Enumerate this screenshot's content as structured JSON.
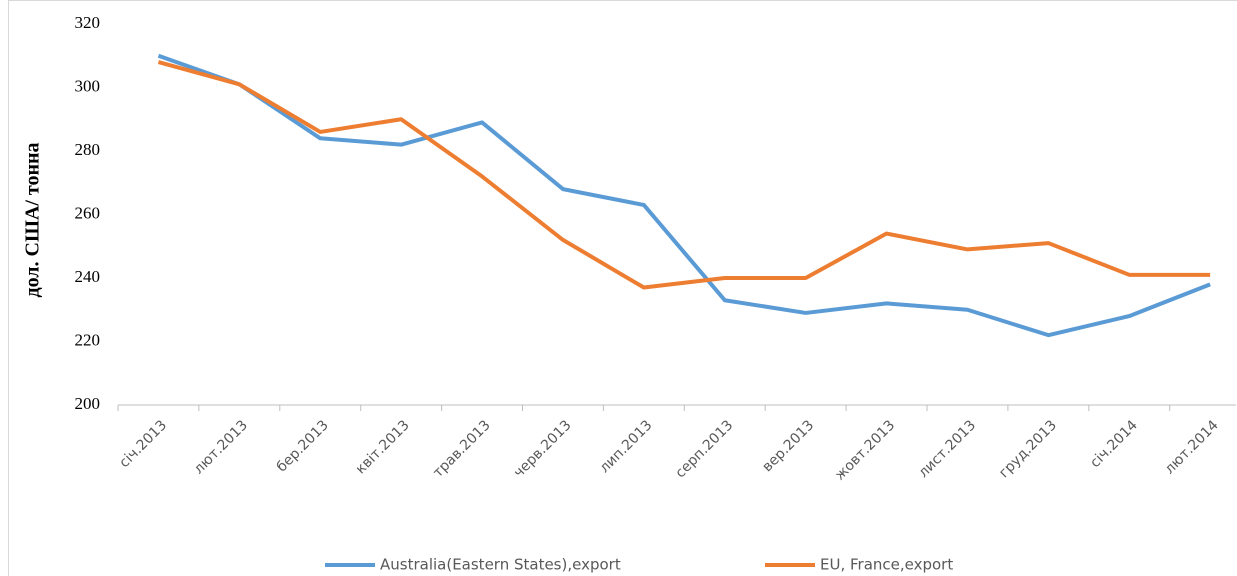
{
  "chart_data": {
    "type": "line",
    "y_label": "дол. США/ тонна",
    "categories": [
      "січ.2013",
      "лют.2013",
      "бер.2013",
      "квіт.2013",
      "трав.2013",
      "черв.2013",
      "лип.2013",
      "серп.2013",
      "вер.2013",
      "жовт.2013",
      "лист.2013",
      "груд.2013",
      "січ.2014",
      "лют.2014"
    ],
    "series": [
      {
        "name": "Australia(Eastern States),export",
        "color": "#5b9bd5",
        "values": [
          310,
          301,
          284,
          282,
          289,
          268,
          263,
          233,
          229,
          232,
          230,
          222,
          228,
          238
        ]
      },
      {
        "name": "EU, France,export",
        "color": "#ed7d31",
        "values": [
          308,
          301,
          286,
          290,
          272,
          252,
          237,
          240,
          240,
          254,
          249,
          251,
          241,
          241
        ]
      }
    ],
    "ylim": [
      200,
      320
    ],
    "yticks": [
      200,
      220,
      240,
      260,
      280,
      300,
      320
    ],
    "grid": false,
    "legend": "bottom"
  }
}
